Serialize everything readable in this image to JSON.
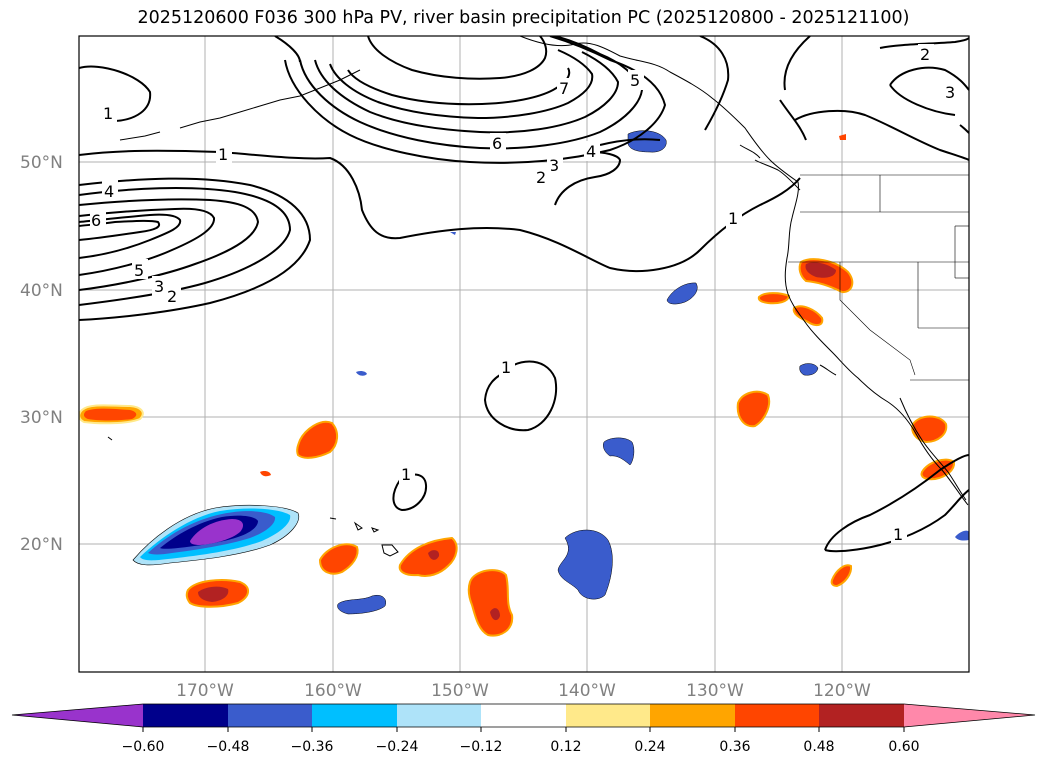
{
  "title": "2025120600 F036 300 hPa PV, river basin precipitation PC (2025120800 - 2025121100)",
  "map": {
    "lat_labels": [
      "50°N",
      "40°N",
      "30°N",
      "20°N"
    ],
    "lon_labels": [
      "170°W",
      "160°W",
      "150°W",
      "140°W",
      "130°W",
      "120°W"
    ],
    "pv_contour_labels": [
      "1",
      "1",
      "4",
      "6",
      "5",
      "3",
      "2",
      "6",
      "7",
      "5",
      "4",
      "3",
      "2",
      "1",
      "2",
      "3",
      "1",
      "1",
      "1"
    ],
    "colors": {
      "pv_contour": "#000000",
      "grid": "#b0b0b0",
      "coast": "#000000"
    }
  },
  "colorbar": {
    "tick_labels": [
      "−0.60",
      "−0.48",
      "−0.36",
      "−0.24",
      "−0.12",
      "0.12",
      "0.24",
      "0.36",
      "0.48",
      "0.60"
    ],
    "colors": [
      "#9933cc",
      "#00008b",
      "#3a5ccc",
      "#00bfff",
      "#aee3f9",
      "#ffffff",
      "#ffe98a",
      "#ffa500",
      "#ff4500",
      "#b22222",
      "#ff88aa"
    ]
  }
}
